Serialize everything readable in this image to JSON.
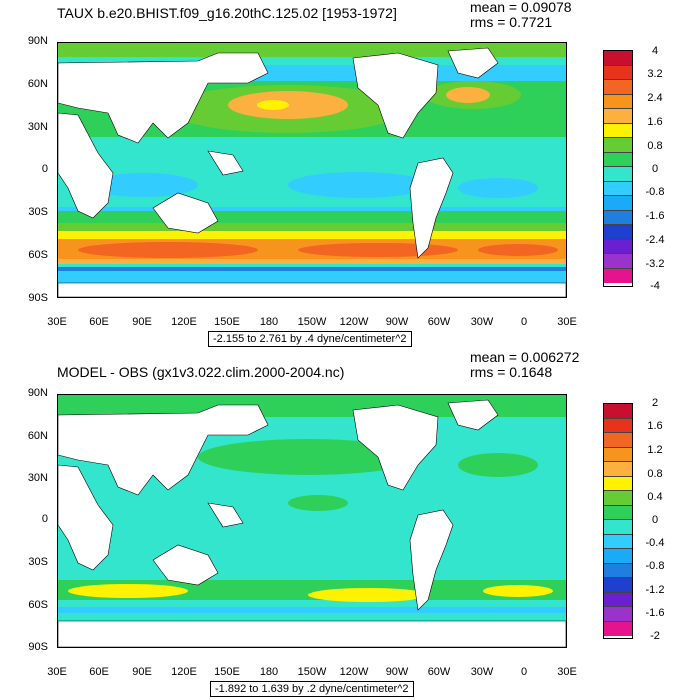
{
  "panels": [
    {
      "title": "TAUX b.e20.BHIST.f09_g16.20thC.125.02 [1953-1972]",
      "mean": "mean = 0.09078",
      "rms": "rms = 0.7721",
      "range": "-2.155 to 2.761 by .4 dyne/centimeter^2",
      "lat_labels": [
        "90N",
        "60N",
        "30N",
        "0",
        "30S",
        "60S",
        "90S"
      ],
      "lon_labels": [
        "30E",
        "60E",
        "90E",
        "120E",
        "150E",
        "180",
        "150W",
        "120W",
        "90W",
        "60W",
        "30W",
        "0",
        "30E"
      ],
      "legend": {
        "labels": [
          "4",
          "3.2",
          "2.4",
          "1.6",
          "0.8",
          "0",
          "-0.8",
          "-1.6",
          "-2.4",
          "-3.2",
          "-4"
        ],
        "colors": [
          "#c8102e",
          "#e8331c",
          "#f26522",
          "#f7941d",
          "#fbb040",
          "#fff200",
          "#66cc33",
          "#2fd05a",
          "#33e5cc",
          "#33ccff",
          "#1aaaf7",
          "#1e7fe0",
          "#1f3fcf",
          "#6a1fd0",
          "#9933cc",
          "#e5138c",
          "#cccccc",
          "#777777"
        ]
      }
    },
    {
      "title": "MODEL - OBS (gx1v3.022.clim.2000-2004.nc)",
      "mean": "mean = 0.006272",
      "rms": "rms = 0.1648",
      "range": "-1.892 to 1.639 by .2 dyne/centimeter^2",
      "lat_labels": [
        "90N",
        "60N",
        "30N",
        "0",
        "30S",
        "60S",
        "90S"
      ],
      "lon_labels": [
        "30E",
        "60E",
        "90E",
        "120E",
        "150E",
        "180",
        "150W",
        "120W",
        "90W",
        "60W",
        "30W",
        "0",
        "30E"
      ],
      "legend": {
        "labels": [
          "2",
          "1.6",
          "1.2",
          "0.8",
          "0.4",
          "0",
          "-0.4",
          "-0.8",
          "-1.2",
          "-1.6",
          "-2"
        ],
        "colors": [
          "#c8102e",
          "#e8331c",
          "#f26522",
          "#f7941d",
          "#fbb040",
          "#fff200",
          "#66cc33",
          "#2fd05a",
          "#33e5cc",
          "#33ccff",
          "#1aaaf7",
          "#1e7fe0",
          "#1f3fcf",
          "#6a1fd0",
          "#9933cc",
          "#e5138c",
          "#cccccc",
          "#777777"
        ]
      }
    }
  ]
}
